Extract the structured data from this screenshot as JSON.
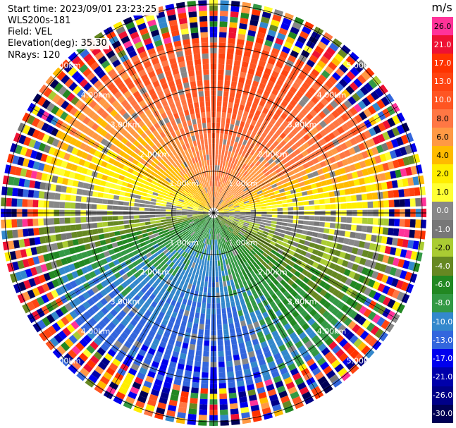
{
  "header": {
    "start_time": "Start time: 2023/09/01 23:23:25",
    "instrument": "WLS200s-181",
    "field": "Field: VEL",
    "elevation": "Elevation(deg): 35.30",
    "nrays": "NRays: 120"
  },
  "colorbar": {
    "unit": "m/s",
    "ticks": [
      "26.0",
      "21.0",
      "17.0",
      "13.0",
      "10.0",
      "8.0",
      "6.0",
      "4.0",
      "2.0",
      "1.0",
      "0.0",
      "-1.0",
      "-2.0",
      "-4.0",
      "-6.0",
      "-8.0",
      "-10.0",
      "-13.0",
      "-17.0",
      "-21.0",
      "-26.0",
      "-30.0"
    ],
    "colors": [
      "#ff3399",
      "#ee1133",
      "#ff3300",
      "#ff4411",
      "#ff5522",
      "#ff7744",
      "#ff9944",
      "#ffbb00",
      "#ffee00",
      "#ffff33",
      "#888888",
      "#777777",
      "#aacc33",
      "#668822",
      "#228822",
      "#339944",
      "#3388cc",
      "#3366dd",
      "#0000ee",
      "#0000aa",
      "#000088",
      "#000055"
    ]
  },
  "chart_data": {
    "type": "ppi_polar",
    "title": "",
    "field": "VEL",
    "units": "m/s",
    "nrays": 120,
    "elevation_deg": 35.3,
    "ring_labels": [
      "1.00km",
      "2.00km",
      "3.00km",
      "4.00km",
      "5.00km"
    ],
    "ring_ranges_km": [
      1.0,
      2.0,
      3.0,
      4.0,
      5.0
    ],
    "max_range_km": 5.1,
    "velocity_sectors": [
      {
        "azimuth_deg": 0,
        "approx_vel_ms": 13
      },
      {
        "azimuth_deg": 60,
        "approx_vel_ms": 10
      },
      {
        "azimuth_deg": 90,
        "approx_vel_ms": 1
      },
      {
        "azimuth_deg": 120,
        "approx_vel_ms": -4
      },
      {
        "azimuth_deg": 180,
        "approx_vel_ms": -13
      },
      {
        "azimuth_deg": 240,
        "approx_vel_ms": -10
      },
      {
        "azimuth_deg": 270,
        "approx_vel_ms": 0
      },
      {
        "azimuth_deg": 300,
        "approx_vel_ms": 6
      }
    ]
  }
}
